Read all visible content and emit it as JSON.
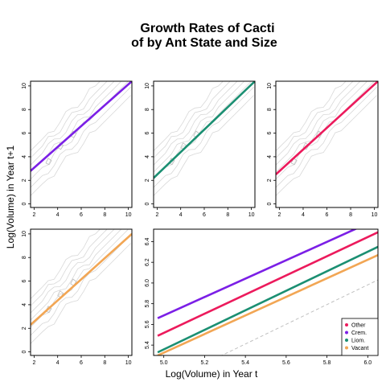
{
  "figure": {
    "title_line1": "Growth Rates of Cacti",
    "title_line2": "of by Ant State and Size",
    "xlabel": "Log(Volume) in Year t",
    "ylabel": "Log(Volume) in Year t+1"
  },
  "chart_data": [
    {
      "type": "line",
      "panel": "top-left",
      "xlim": [
        1.7,
        10.3
      ],
      "ylim": [
        -0.3,
        10.4
      ],
      "xticks": [
        "2",
        "4",
        "6",
        "8",
        "10"
      ],
      "yticks": [
        "0",
        "2",
        "4",
        "6",
        "8",
        "10"
      ],
      "background_contours": true,
      "series": [
        {
          "color": "#7b1fe6",
          "x": [
            1.7,
            10.3
          ],
          "y": [
            2.8,
            10.4
          ]
        }
      ]
    },
    {
      "type": "line",
      "panel": "top-middle",
      "xlim": [
        1.7,
        10.3
      ],
      "ylim": [
        -0.3,
        10.4
      ],
      "xticks": [
        "2",
        "4",
        "6",
        "8",
        "10"
      ],
      "yticks": [
        "0",
        "2",
        "4",
        "6",
        "8",
        "10"
      ],
      "background_contours": true,
      "series": [
        {
          "color": "#1b8f72",
          "x": [
            1.7,
            10.3
          ],
          "y": [
            2.2,
            10.4
          ]
        }
      ]
    },
    {
      "type": "line",
      "panel": "top-right",
      "xlim": [
        1.7,
        10.3
      ],
      "ylim": [
        -0.3,
        10.4
      ],
      "xticks": [
        "2",
        "4",
        "6",
        "8",
        "10"
      ],
      "yticks": [
        "0",
        "2",
        "4",
        "6",
        "8",
        "10"
      ],
      "background_contours": true,
      "series": [
        {
          "color": "#ec1a5c",
          "x": [
            1.7,
            10.3
          ],
          "y": [
            2.5,
            10.4
          ]
        }
      ]
    },
    {
      "type": "line",
      "panel": "bottom-left",
      "xlim": [
        1.7,
        10.3
      ],
      "ylim": [
        -0.3,
        10.4
      ],
      "xticks": [
        "2",
        "4",
        "6",
        "8",
        "10"
      ],
      "yticks": [
        "0",
        "2",
        "4",
        "6",
        "8",
        "10"
      ],
      "background_contours": true,
      "series": [
        {
          "color": "#f2a654",
          "x": [
            1.7,
            10.3
          ],
          "y": [
            2.3,
            10.0
          ]
        }
      ]
    },
    {
      "type": "line",
      "panel": "bottom-right",
      "xlim": [
        4.95,
        6.05
      ],
      "ylim": [
        5.3,
        6.52
      ],
      "xticks": [
        "5.0",
        "5.2",
        "5.4",
        "5.6",
        "5.8",
        "6.0"
      ],
      "yticks": [
        "5.4",
        "5.6",
        "5.8",
        "6.0",
        "6.2",
        "6.4"
      ],
      "legend_position": "bottom-right",
      "series": [
        {
          "name": "Other",
          "color": "#ec1a5c",
          "x": [
            4.97,
            6.05
          ],
          "y": [
            5.49,
            6.49
          ]
        },
        {
          "name": "Crem.",
          "color": "#7b1fe6",
          "x": [
            4.97,
            6.05
          ],
          "y": [
            5.66,
            6.62
          ]
        },
        {
          "name": "Liom.",
          "color": "#1b8f72",
          "x": [
            4.97,
            6.05
          ],
          "y": [
            5.33,
            6.35
          ]
        },
        {
          "name": "Vacant",
          "color": "#f2a654",
          "x": [
            4.97,
            6.05
          ],
          "y": [
            5.3,
            6.27
          ]
        }
      ],
      "reference_line": {
        "color": "#c0c0c0",
        "x": [
          5.2,
          6.05
        ],
        "y": [
          5.22,
          6.03
        ]
      }
    }
  ]
}
